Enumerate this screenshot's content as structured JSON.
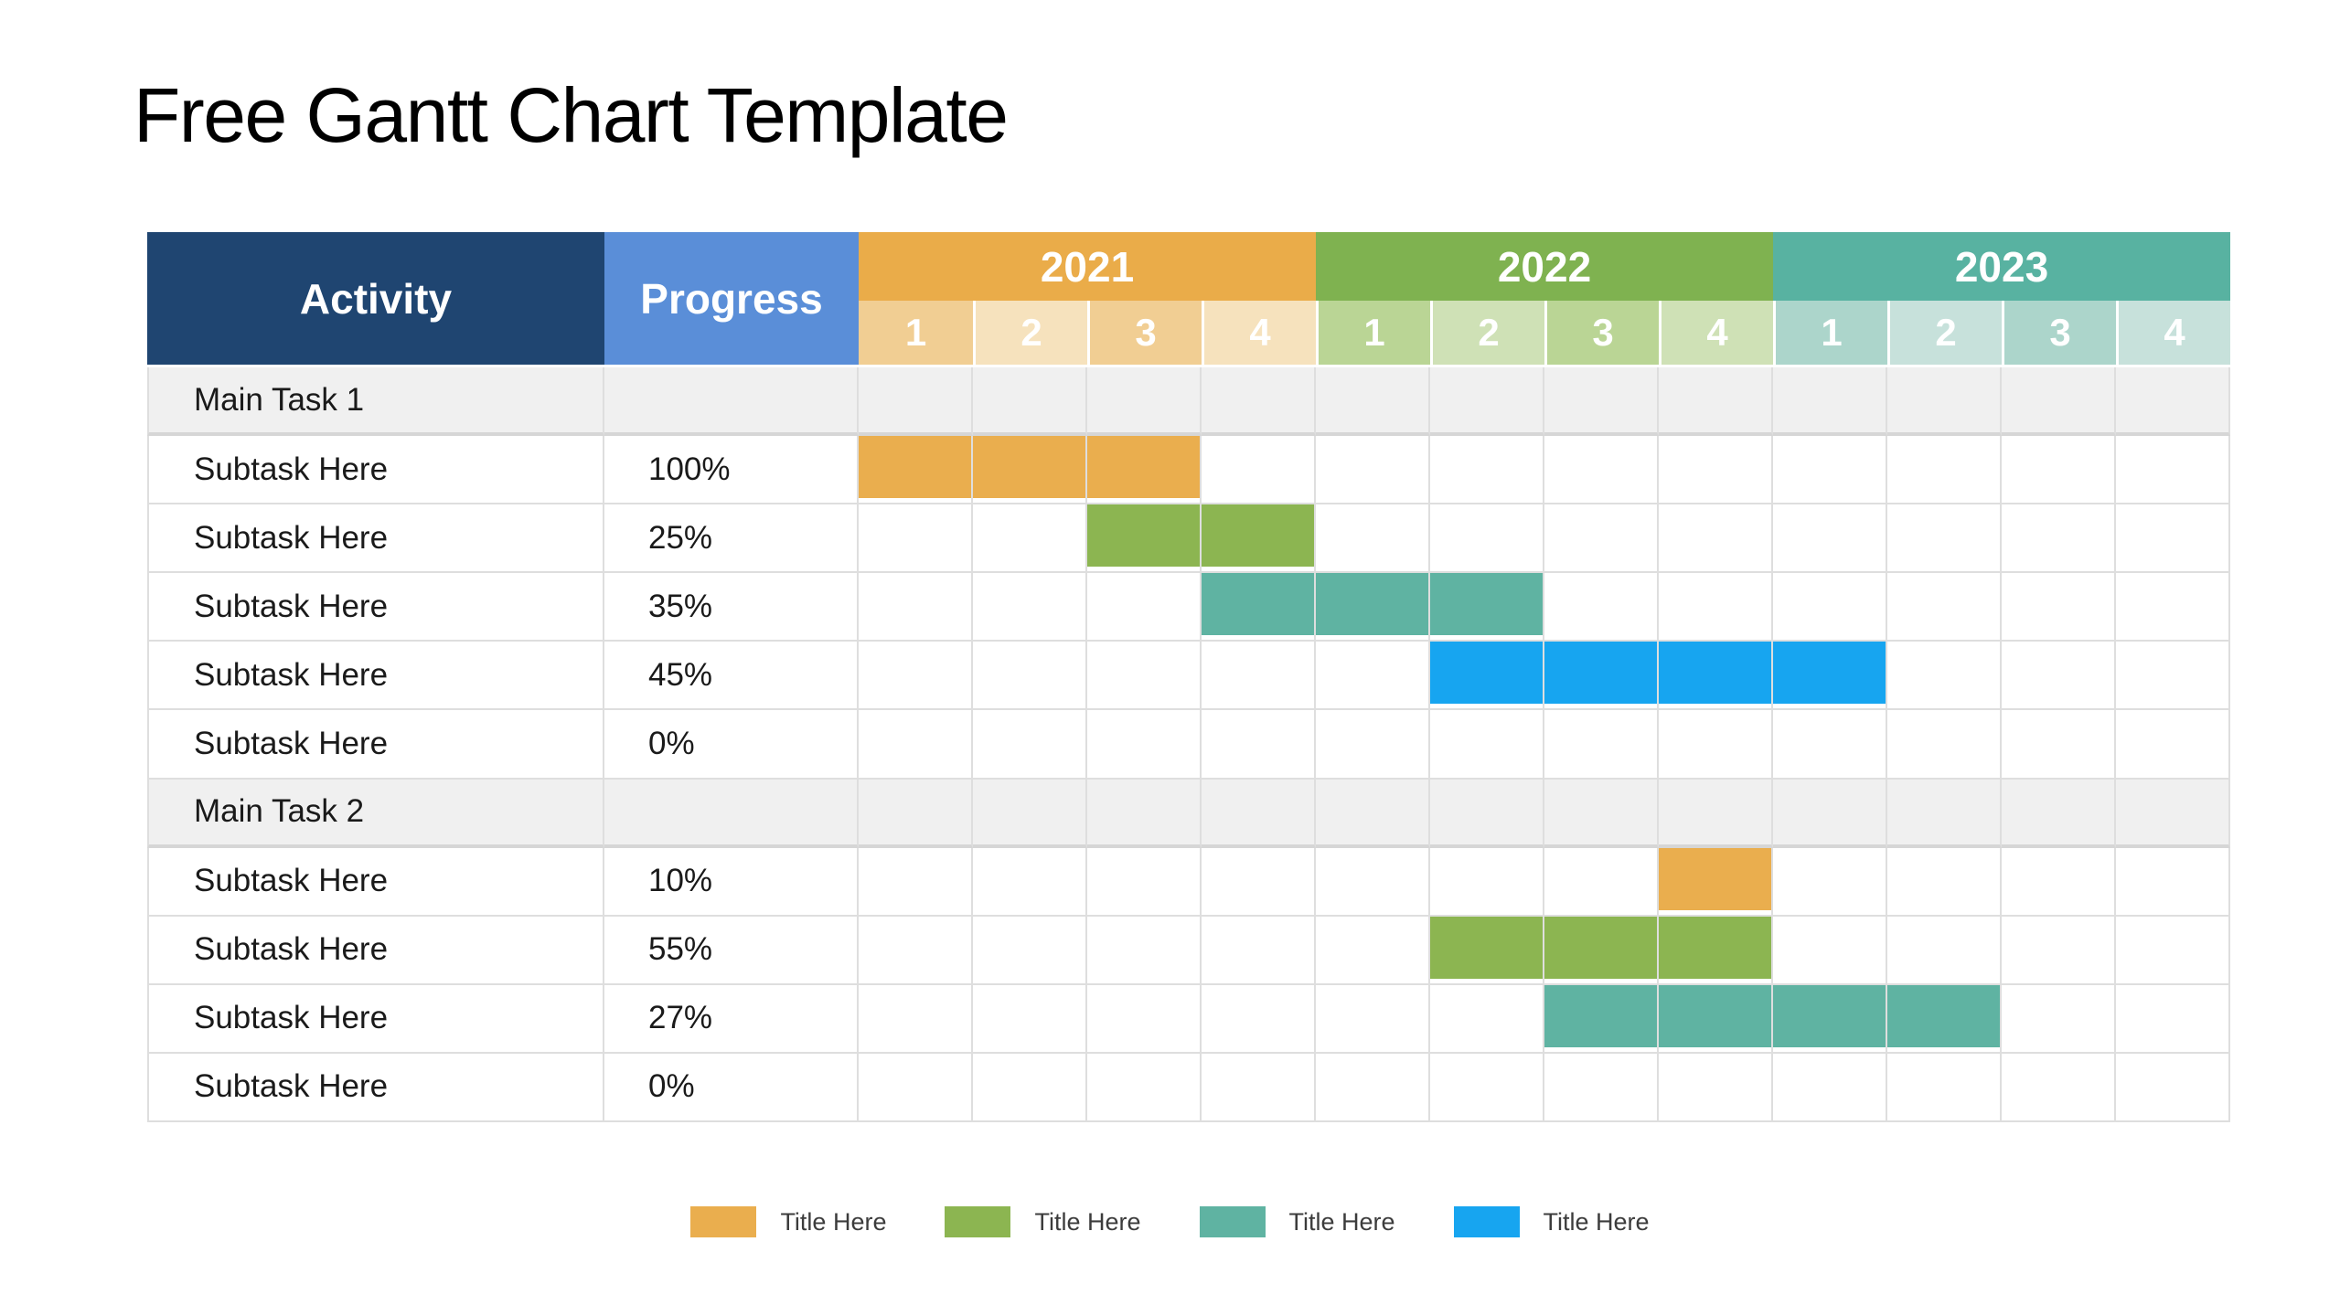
{
  "title": "Free Gantt Chart Template",
  "colors": {
    "activity_header_bg": "#1F4571",
    "progress_header_bg": "#5A8ED8",
    "group_row_bg": "#F0F0F0",
    "grid_line": "#DEDEDE",
    "body_text": "#1A1A1A",
    "legend_text": "#3C3C3C",
    "bars": {
      "orange": "#EAAE4E",
      "green": "#8CB551",
      "teal": "#5FB3A2",
      "blue": "#17A5F0"
    }
  },
  "chart_data": {
    "type": "gantt",
    "title": "Free Gantt Chart Template",
    "column_headers": {
      "activity": "Activity",
      "progress": "Progress"
    },
    "timeline_unit": "quarters",
    "years": [
      {
        "label": "2021",
        "color": "#EAAC49",
        "quarters": [
          "1",
          "2",
          "3",
          "4"
        ],
        "quarter_tints": [
          "#F1CE93",
          "#F6E2BD",
          "#F1CE93",
          "#F6E2BD"
        ]
      },
      {
        "label": "2022",
        "color": "#7FB250",
        "quarters": [
          "1",
          "2",
          "3",
          "4"
        ],
        "quarter_tints": [
          "#BAD595",
          "#CFE1B6",
          "#BAD595",
          "#CFE1B6"
        ]
      },
      {
        "label": "2023",
        "color": "#58B2A1",
        "quarters": [
          "1",
          "2",
          "3",
          "4"
        ],
        "quarter_tints": [
          "#ACD5CB",
          "#C7E1DB",
          "#ACD5CB",
          "#C7E1DB"
        ]
      }
    ],
    "rows": [
      {
        "type": "group",
        "activity": "Main Task 1",
        "progress": "",
        "bar": null
      },
      {
        "type": "task",
        "activity": "Subtask Here",
        "progress": "100%",
        "bar": {
          "color": "orange",
          "start_quarter_index": 0,
          "quarters": 3,
          "range": "2021 Q1 - 2021 Q3"
        }
      },
      {
        "type": "task",
        "activity": "Subtask Here",
        "progress": "25%",
        "bar": {
          "color": "green",
          "start_quarter_index": 2,
          "quarters": 2,
          "range": "2021 Q3 - 2021 Q4"
        }
      },
      {
        "type": "task",
        "activity": "Subtask Here",
        "progress": "35%",
        "bar": {
          "color": "teal",
          "start_quarter_index": 3,
          "quarters": 3,
          "range": "2021 Q4 - 2022 Q2"
        }
      },
      {
        "type": "task",
        "activity": "Subtask Here",
        "progress": "45%",
        "bar": {
          "color": "blue",
          "start_quarter_index": 5,
          "quarters": 4,
          "range": "2022 Q2 - 2023 Q1"
        }
      },
      {
        "type": "task",
        "activity": "Subtask Here",
        "progress": "0%",
        "bar": null
      },
      {
        "type": "group",
        "activity": "Main Task 2",
        "progress": "",
        "bar": null
      },
      {
        "type": "task",
        "activity": "Subtask Here",
        "progress": "10%",
        "bar": {
          "color": "orange",
          "start_quarter_index": 7,
          "quarters": 1,
          "range": "2022 Q4"
        }
      },
      {
        "type": "task",
        "activity": "Subtask Here",
        "progress": "55%",
        "bar": {
          "color": "green",
          "start_quarter_index": 5,
          "quarters": 3,
          "range": "2022 Q2 - 2022 Q4"
        }
      },
      {
        "type": "task",
        "activity": "Subtask Here",
        "progress": "27%",
        "bar": {
          "color": "teal",
          "start_quarter_index": 6,
          "quarters": 4,
          "range": "2022 Q3 - 2023 Q2"
        }
      },
      {
        "type": "task",
        "activity": "Subtask Here",
        "progress": "0%",
        "bar": null
      }
    ],
    "legend": [
      {
        "label": "Title Here",
        "color_key": "orange",
        "color": "#EAAE4E"
      },
      {
        "label": "Title Here",
        "color_key": "green",
        "color": "#8CB551"
      },
      {
        "label": "Title Here",
        "color_key": "teal",
        "color": "#5FB3A2"
      },
      {
        "label": "Title Here",
        "color_key": "blue",
        "color": "#17A5F0"
      }
    ]
  }
}
